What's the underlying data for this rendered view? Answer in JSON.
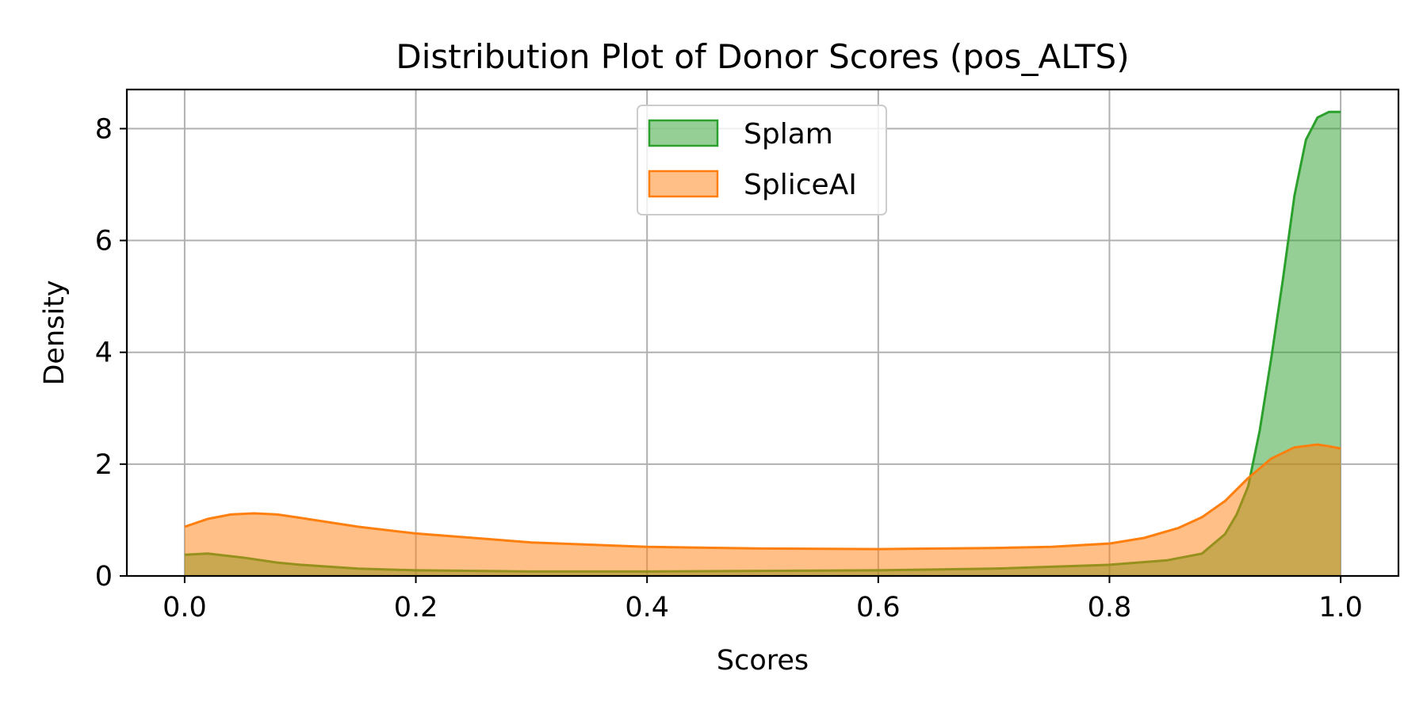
{
  "chart_data": {
    "type": "area",
    "title": "Distribution Plot of Donor Scores (pos_ALTS)",
    "xlabel": "Scores",
    "ylabel": "Density",
    "xlim": [
      -0.05,
      1.05
    ],
    "ylim": [
      0,
      8.7
    ],
    "xticks": [
      0.0,
      0.2,
      0.4,
      0.6,
      0.8,
      1.0
    ],
    "xtick_labels": [
      "0.0",
      "0.2",
      "0.4",
      "0.6",
      "0.8",
      "1.0"
    ],
    "yticks": [
      0,
      2,
      4,
      6,
      8
    ],
    "ytick_labels": [
      "0",
      "2",
      "4",
      "6",
      "8"
    ],
    "grid": true,
    "legend_position": "upper center",
    "series": [
      {
        "name": "Splam",
        "line_color": "#2ca02c",
        "fill_color": "#2ca02c",
        "fill_opacity": 0.5,
        "x": [
          0.0,
          0.02,
          0.05,
          0.08,
          0.1,
          0.15,
          0.2,
          0.3,
          0.4,
          0.5,
          0.6,
          0.7,
          0.8,
          0.85,
          0.88,
          0.9,
          0.91,
          0.92,
          0.93,
          0.94,
          0.95,
          0.96,
          0.97,
          0.98,
          0.99,
          1.0
        ],
        "y": [
          0.38,
          0.4,
          0.33,
          0.24,
          0.2,
          0.13,
          0.1,
          0.08,
          0.08,
          0.09,
          0.1,
          0.13,
          0.2,
          0.28,
          0.4,
          0.75,
          1.1,
          1.6,
          2.6,
          3.9,
          5.3,
          6.8,
          7.8,
          8.2,
          8.3,
          8.3
        ]
      },
      {
        "name": "SpliceAI",
        "line_color": "#ff7f0e",
        "fill_color": "#ff7f0e",
        "fill_opacity": 0.5,
        "x": [
          0.0,
          0.02,
          0.04,
          0.06,
          0.08,
          0.1,
          0.15,
          0.2,
          0.3,
          0.4,
          0.5,
          0.6,
          0.7,
          0.75,
          0.8,
          0.83,
          0.86,
          0.88,
          0.9,
          0.92,
          0.94,
          0.96,
          0.98,
          0.99,
          1.0
        ],
        "y": [
          0.88,
          1.02,
          1.1,
          1.12,
          1.1,
          1.04,
          0.88,
          0.76,
          0.6,
          0.52,
          0.49,
          0.48,
          0.5,
          0.52,
          0.58,
          0.68,
          0.86,
          1.05,
          1.34,
          1.75,
          2.1,
          2.3,
          2.35,
          2.32,
          2.28
        ]
      }
    ]
  }
}
